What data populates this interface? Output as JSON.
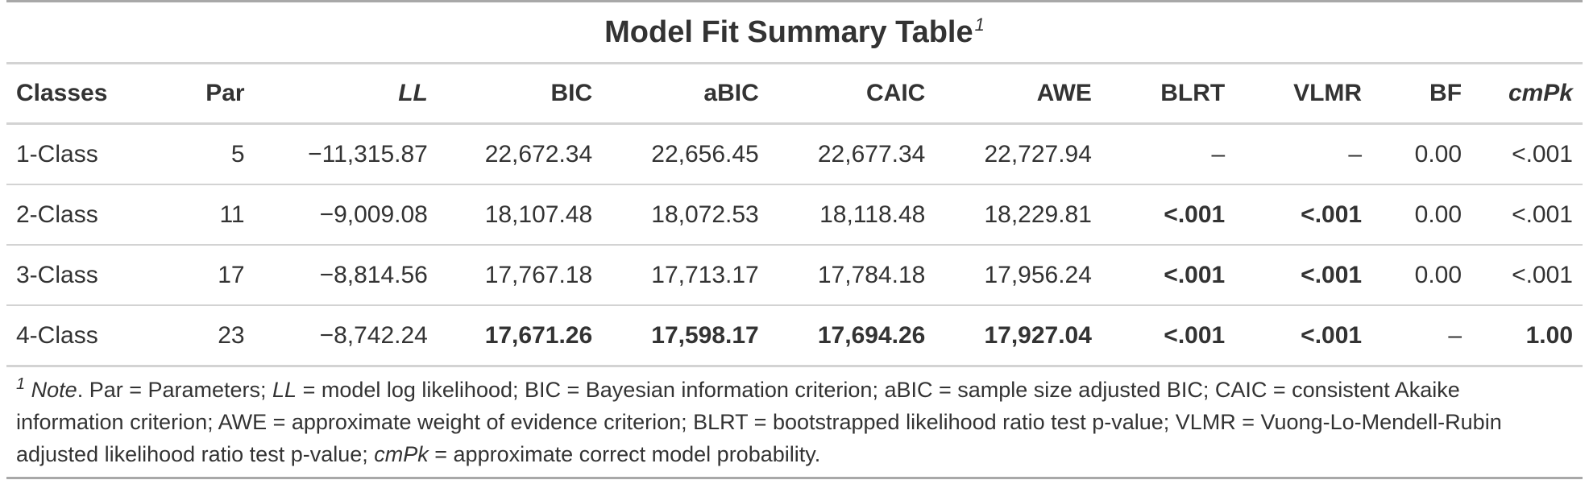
{
  "table": {
    "title": "Model Fit Summary Table",
    "title_footnote_mark": "1",
    "columns": [
      {
        "label": "Classes",
        "align": "l",
        "italic": false
      },
      {
        "label": "Par",
        "align": "r",
        "italic": false
      },
      {
        "label": "LL",
        "align": "r",
        "italic": true
      },
      {
        "label": "BIC",
        "align": "r",
        "italic": false
      },
      {
        "label": "aBIC",
        "align": "r",
        "italic": false
      },
      {
        "label": "CAIC",
        "align": "r",
        "italic": false
      },
      {
        "label": "AWE",
        "align": "r",
        "italic": false
      },
      {
        "label": "BLRT",
        "align": "r",
        "italic": false
      },
      {
        "label": "VLMR",
        "align": "r",
        "italic": false
      },
      {
        "label": "BF",
        "align": "r",
        "italic": false
      },
      {
        "label": "cmPk",
        "align": "r",
        "italic": true
      }
    ],
    "rows": [
      {
        "cells": [
          {
            "v": "1-Class",
            "b": false
          },
          {
            "v": "5",
            "b": false
          },
          {
            "v": "−11,315.87",
            "b": false
          },
          {
            "v": "22,672.34",
            "b": false
          },
          {
            "v": "22,656.45",
            "b": false
          },
          {
            "v": "22,677.34",
            "b": false
          },
          {
            "v": "22,727.94",
            "b": false
          },
          {
            "v": "–",
            "b": false
          },
          {
            "v": "–",
            "b": false
          },
          {
            "v": "0.00",
            "b": false
          },
          {
            "v": "<.001",
            "b": false
          }
        ]
      },
      {
        "cells": [
          {
            "v": "2-Class",
            "b": false
          },
          {
            "v": "11",
            "b": false
          },
          {
            "v": "−9,009.08",
            "b": false
          },
          {
            "v": "18,107.48",
            "b": false
          },
          {
            "v": "18,072.53",
            "b": false
          },
          {
            "v": "18,118.48",
            "b": false
          },
          {
            "v": "18,229.81",
            "b": false
          },
          {
            "v": "<.001",
            "b": true
          },
          {
            "v": "<.001",
            "b": true
          },
          {
            "v": "0.00",
            "b": false
          },
          {
            "v": "<.001",
            "b": false
          }
        ]
      },
      {
        "cells": [
          {
            "v": "3-Class",
            "b": false
          },
          {
            "v": "17",
            "b": false
          },
          {
            "v": "−8,814.56",
            "b": false
          },
          {
            "v": "17,767.18",
            "b": false
          },
          {
            "v": "17,713.17",
            "b": false
          },
          {
            "v": "17,784.18",
            "b": false
          },
          {
            "v": "17,956.24",
            "b": false
          },
          {
            "v": "<.001",
            "b": true
          },
          {
            "v": "<.001",
            "b": true
          },
          {
            "v": "0.00",
            "b": false
          },
          {
            "v": "<.001",
            "b": false
          }
        ]
      },
      {
        "cells": [
          {
            "v": "4-Class",
            "b": false
          },
          {
            "v": "23",
            "b": false
          },
          {
            "v": "−8,742.24",
            "b": false
          },
          {
            "v": "17,671.26",
            "b": true
          },
          {
            "v": "17,598.17",
            "b": true
          },
          {
            "v": "17,694.26",
            "b": true
          },
          {
            "v": "17,927.04",
            "b": true
          },
          {
            "v": "<.001",
            "b": true
          },
          {
            "v": "<.001",
            "b": true
          },
          {
            "v": "–",
            "b": false
          },
          {
            "v": "1.00",
            "b": true
          }
        ]
      }
    ],
    "note": {
      "mark": "1",
      "note_label": "Note",
      "segments": [
        {
          "t": ". Par = Parameters; ",
          "i": false
        },
        {
          "t": "LL",
          "i": true
        },
        {
          "t": " = model log likelihood; BIC = Bayesian information criterion; aBIC = sample size adjusted BIC; CAIC = consistent Akaike information criterion; AWE = approximate weight of evidence criterion; BLRT = bootstrapped likelihood ratio test p-value; VLMR = Vuong-Lo-Mendell-Rubin adjusted likelihood ratio test p-value; ",
          "i": false
        },
        {
          "t": "cmPk",
          "i": true
        },
        {
          "t": " = approximate correct model probability.",
          "i": false
        }
      ]
    }
  }
}
